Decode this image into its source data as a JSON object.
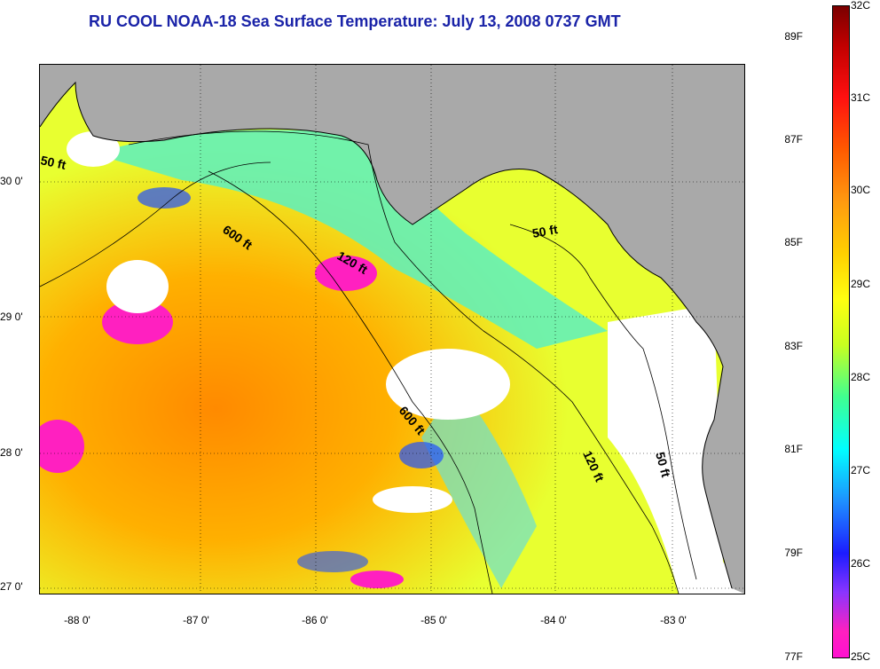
{
  "title": "RU COOL  NOAA-18  Sea Surface Temperature:  July 13, 2008 0737 GMT",
  "axes": {
    "x_ticks": [
      "-88 0'",
      "-87 0'",
      "-86 0'",
      "-85 0'",
      "-84 0'",
      "-83 0'"
    ],
    "y_ticks": [
      "30 0'",
      "29 0'",
      "28 0'",
      "27 0'"
    ]
  },
  "contour_labels": [
    "50 ft",
    "600 ft",
    "120 ft",
    "50 ft",
    "600 ft",
    "120 ft",
    "50 ft"
  ],
  "colorbar": {
    "celsius": [
      "32C",
      "31C",
      "30C",
      "29C",
      "28C",
      "27C",
      "26C",
      "25C"
    ],
    "fahrenheit": [
      "89F",
      "87F",
      "85F",
      "83F",
      "81F",
      "79F",
      "77F"
    ]
  },
  "colors": {
    "title": "#1a23a8",
    "land": "#a9a9a9",
    "warm": "#ff8c00",
    "mid": "#ffff20",
    "cool": "#40ffb0",
    "cold": "#1e3cff",
    "cloud": "#ff20c0"
  }
}
